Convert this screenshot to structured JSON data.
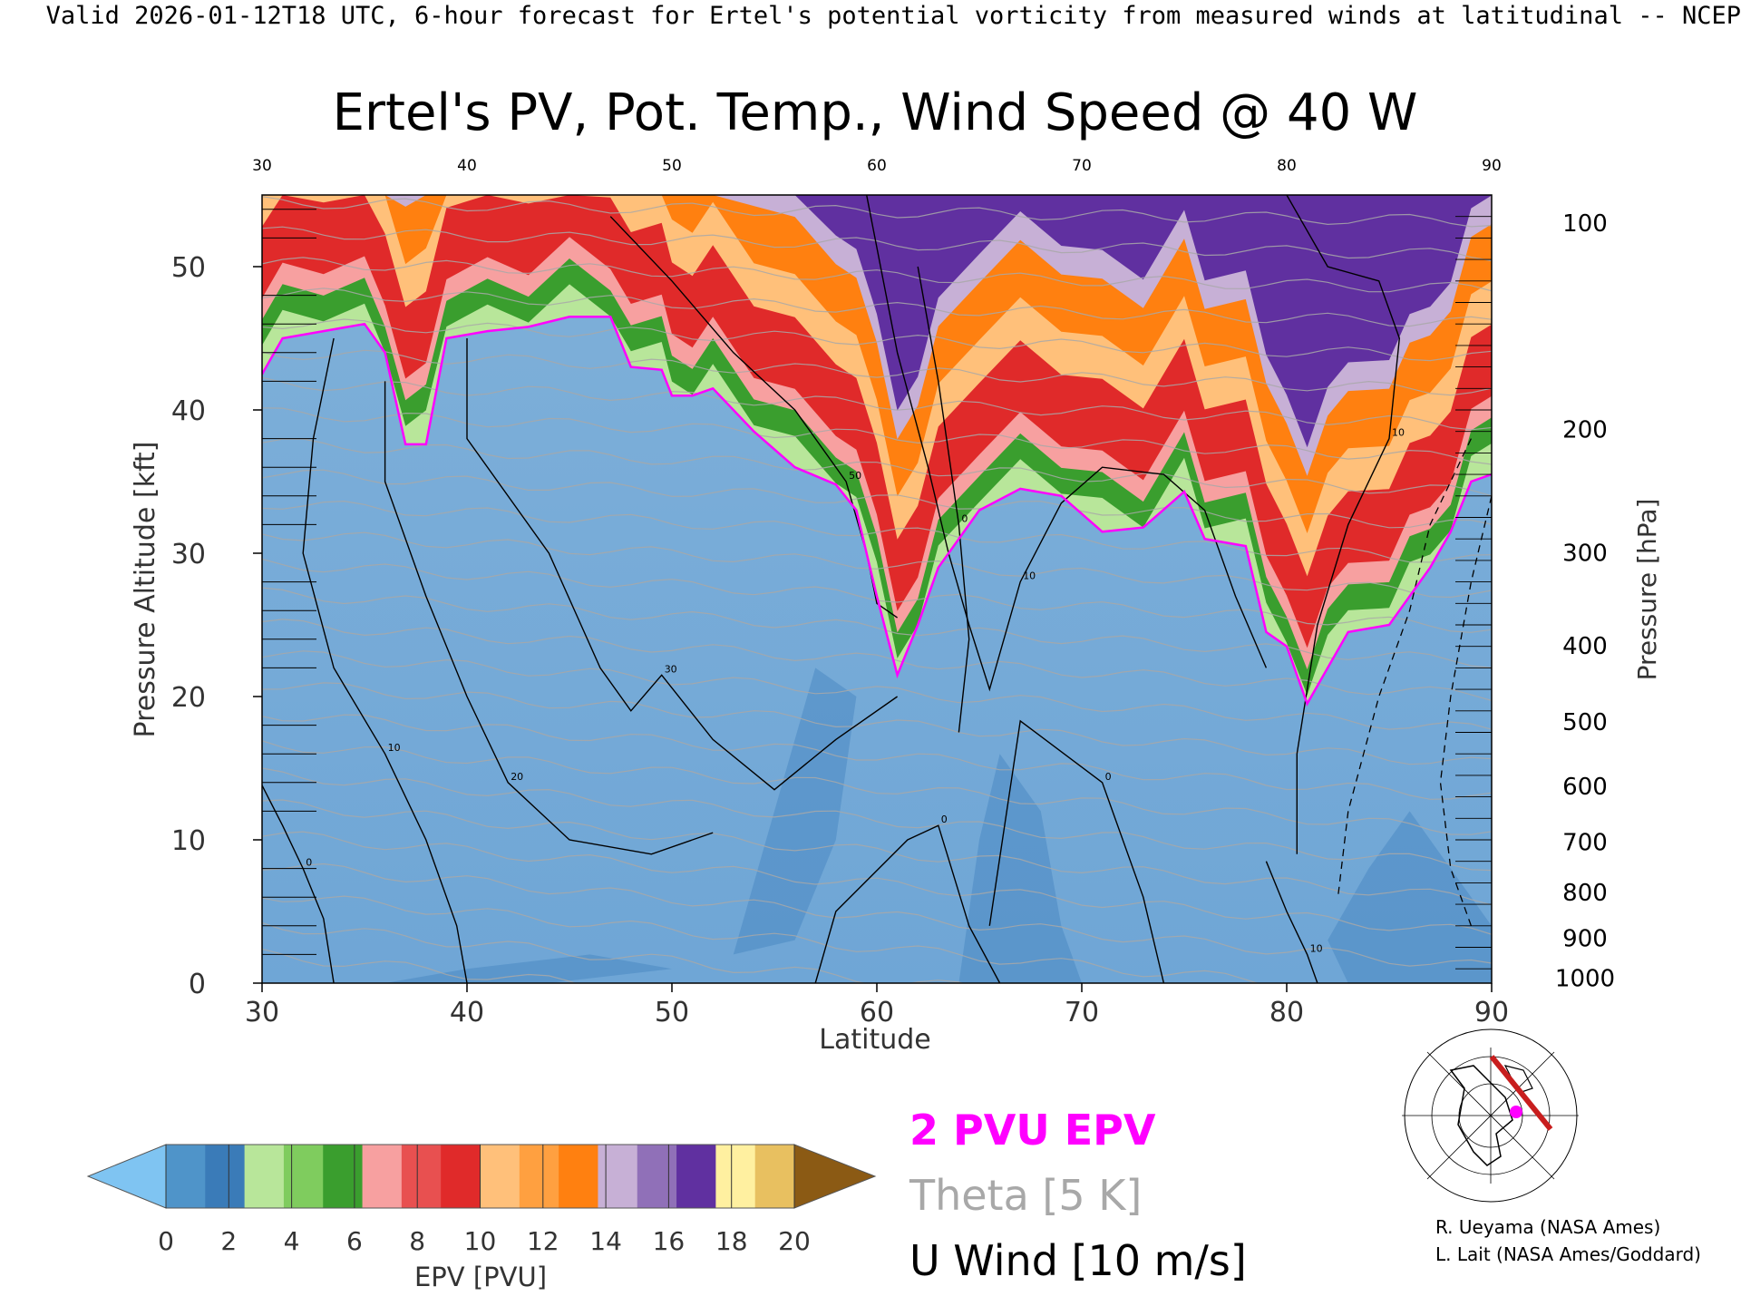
{
  "header": {
    "caption": "Valid 2026-01-12T18 UTC, 6-hour forecast for Ertel's potential vorticity from measured winds at latitudinal -- NCEP"
  },
  "chart_data": {
    "type": "heatmap",
    "title": "Ertel's PV, Pot. Temp., Wind Speed @ 40 W",
    "xlabel": "Latitude",
    "ylabel_left": "Pressure Altitude [kft]",
    "ylabel_right": "Pressure [hPa]",
    "xlim": [
      30,
      90
    ],
    "ylim": [
      0,
      55
    ],
    "x_ticks": [
      "30",
      "40",
      "50",
      "60",
      "70",
      "80",
      "90"
    ],
    "y_ticks": [
      "0",
      "10",
      "20",
      "30",
      "40",
      "50"
    ],
    "pressure_ticks": [
      {
        "label": "1000",
        "kft": 0.4
      },
      {
        "label": "900",
        "kft": 3.2
      },
      {
        "label": "800",
        "kft": 6.4
      },
      {
        "label": "700",
        "kft": 9.9
      },
      {
        "label": "600",
        "kft": 13.8
      },
      {
        "label": "500",
        "kft": 18.3
      },
      {
        "label": "400",
        "kft": 23.6
      },
      {
        "label": "300",
        "kft": 30.1
      },
      {
        "label": "200",
        "kft": 38.7
      },
      {
        "label": "100",
        "kft": 53.1
      }
    ],
    "tropopause_2pvu_kft": [
      {
        "x": 30,
        "y": 42.5
      },
      {
        "x": 31,
        "y": 45
      },
      {
        "x": 33,
        "y": 45.5
      },
      {
        "x": 35,
        "y": 46
      },
      {
        "x": 36,
        "y": 44
      },
      {
        "x": 37,
        "y": 37.6
      },
      {
        "x": 38,
        "y": 37.6
      },
      {
        "x": 39,
        "y": 45
      },
      {
        "x": 41,
        "y": 45.5
      },
      {
        "x": 43,
        "y": 45.8
      },
      {
        "x": 45,
        "y": 46.5
      },
      {
        "x": 47,
        "y": 46.5
      },
      {
        "x": 48,
        "y": 43
      },
      {
        "x": 49.5,
        "y": 42.8
      },
      {
        "x": 50,
        "y": 41
      },
      {
        "x": 51,
        "y": 41
      },
      {
        "x": 52,
        "y": 41.5
      },
      {
        "x": 54,
        "y": 38.5
      },
      {
        "x": 56,
        "y": 36
      },
      {
        "x": 58,
        "y": 34.8
      },
      {
        "x": 59,
        "y": 33
      },
      {
        "x": 60,
        "y": 27
      },
      {
        "x": 61,
        "y": 21.5
      },
      {
        "x": 62,
        "y": 25
      },
      {
        "x": 63,
        "y": 29
      },
      {
        "x": 65,
        "y": 33
      },
      {
        "x": 67,
        "y": 34.5
      },
      {
        "x": 69,
        "y": 34
      },
      {
        "x": 71,
        "y": 31.5
      },
      {
        "x": 73,
        "y": 31.8
      },
      {
        "x": 75,
        "y": 34.3
      },
      {
        "x": 76,
        "y": 31
      },
      {
        "x": 78,
        "y": 30.5
      },
      {
        "x": 79,
        "y": 24.5
      },
      {
        "x": 80,
        "y": 23.5
      },
      {
        "x": 81,
        "y": 19.5
      },
      {
        "x": 82,
        "y": 22
      },
      {
        "x": 83,
        "y": 24.5
      },
      {
        "x": 85,
        "y": 25
      },
      {
        "x": 86,
        "y": 27
      },
      {
        "x": 87,
        "y": 29
      },
      {
        "x": 88,
        "y": 31.5
      },
      {
        "x": 89,
        "y": 35
      },
      {
        "x": 90,
        "y": 35.5
      }
    ],
    "u_wind_contours": [
      {
        "label": "0",
        "points": [
          [
            30,
            13.8
          ],
          [
            31,
            11
          ],
          [
            32,
            8
          ],
          [
            33,
            4.5
          ],
          [
            33.5,
            0
          ]
        ]
      },
      {
        "label": "10",
        "points": [
          [
            33.5,
            45
          ],
          [
            32.5,
            38
          ],
          [
            32,
            30
          ],
          [
            33.5,
            22
          ],
          [
            36,
            16
          ],
          [
            38,
            10
          ],
          [
            39.5,
            4
          ],
          [
            40,
            0
          ]
        ]
      },
      {
        "label": "20",
        "points": [
          [
            36,
            42
          ],
          [
            36,
            35
          ],
          [
            38,
            27
          ],
          [
            40,
            20
          ],
          [
            42,
            14
          ],
          [
            45,
            10
          ],
          [
            49,
            9
          ],
          [
            52,
            10.5
          ]
        ]
      },
      {
        "label": "30",
        "points": [
          [
            40,
            45
          ],
          [
            40,
            38
          ],
          [
            44,
            30
          ],
          [
            46.5,
            22
          ],
          [
            48,
            19
          ],
          [
            49.5,
            21.5
          ],
          [
            52,
            17
          ],
          [
            55,
            13.5
          ],
          [
            58,
            17
          ],
          [
            61,
            20
          ]
        ]
      },
      {
        "label": "50",
        "points": [
          [
            47,
            53.5
          ],
          [
            50,
            49
          ],
          [
            53,
            44
          ],
          [
            56,
            40
          ],
          [
            58.5,
            35
          ],
          [
            59.5,
            30
          ],
          [
            60,
            26.5
          ],
          [
            61,
            25.5
          ]
        ]
      },
      {
        "label": "10",
        "points": [
          [
            59.5,
            55
          ],
          [
            61,
            44
          ],
          [
            62.5,
            36
          ],
          [
            63.5,
            30
          ],
          [
            64.5,
            25
          ],
          [
            65.5,
            20.5
          ],
          [
            67,
            28
          ],
          [
            69,
            33.5
          ],
          [
            71,
            36
          ],
          [
            74,
            35.5
          ],
          [
            76,
            33
          ],
          [
            77.5,
            27
          ],
          [
            79,
            22
          ]
        ]
      },
      {
        "label": "0",
        "points": [
          [
            62,
            50
          ],
          [
            63,
            42
          ],
          [
            64,
            32
          ],
          [
            64.5,
            24
          ],
          [
            64,
            17.5
          ]
        ]
      },
      {
        "label": "10",
        "points": [
          [
            79,
            8.5
          ],
          [
            80,
            5
          ],
          [
            81,
            2
          ],
          [
            81.5,
            0
          ]
        ]
      },
      {
        "label": "10",
        "points": [
          [
            80,
            55
          ],
          [
            82,
            50
          ],
          [
            84.5,
            49
          ],
          [
            85.5,
            45
          ],
          [
            85,
            38
          ],
          [
            83,
            32
          ],
          [
            81.5,
            25
          ],
          [
            80.5,
            16
          ],
          [
            80.5,
            9
          ]
        ]
      },
      {
        "label": "0",
        "points": [
          [
            57,
            0
          ],
          [
            58,
            5
          ],
          [
            61.5,
            10
          ],
          [
            63,
            11
          ],
          [
            64.5,
            4
          ],
          [
            66,
            0
          ]
        ]
      },
      {
        "label": "0",
        "points": [
          [
            65.5,
            4
          ],
          [
            67,
            18.3
          ],
          [
            71,
            14
          ],
          [
            73,
            6
          ],
          [
            74,
            0
          ]
        ]
      }
    ],
    "colorbar": {
      "label": "EPV [PVU]",
      "ticks": [
        "0",
        "2",
        "4",
        "6",
        "8",
        "10",
        "12",
        "14",
        "16",
        "18",
        "20"
      ],
      "colors": [
        "#7fc4f2",
        "#4f94c9",
        "#3a7bb8",
        "#b8e69a",
        "#7fcc5e",
        "#3a9e2e",
        "#f7a0a0",
        "#e85050",
        "#e02a2a",
        "#ffc07a",
        "#ffa040",
        "#ff8010",
        "#c7b0d6",
        "#9070b8",
        "#6030a0",
        "#fff0a0",
        "#e8c060",
        "#8b5a14"
      ]
    },
    "legend": {
      "epv": "2 PVU EPV",
      "theta": "Theta [5 K]",
      "wind": "U Wind [10 m/s]",
      "epv_color": "#ff00ff",
      "theta_color": "#a8a8a8",
      "wind_color": "#000000"
    },
    "credits": [
      "R. Ueyama (NASA Ames)",
      "L. Lait (NASA Ames/Goddard)"
    ]
  }
}
